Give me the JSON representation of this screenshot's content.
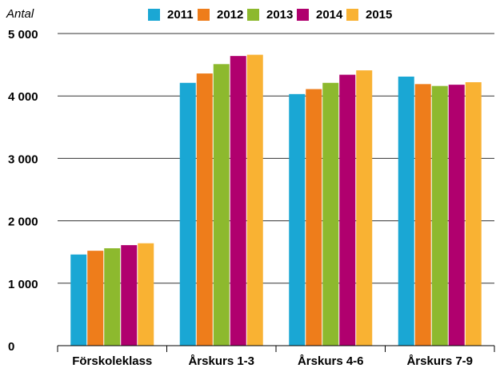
{
  "chart_data": {
    "type": "bar",
    "y_label": "Antal",
    "categories": [
      "Förskoleklass",
      "Årskurs 1-3",
      "Årskurs 4-6",
      "Årskurs 7-9"
    ],
    "series": [
      {
        "name": "2011",
        "color": "#1aa7d4",
        "values": [
          1460,
          4210,
          4030,
          4310
        ]
      },
      {
        "name": "2012",
        "color": "#ee7d1b",
        "values": [
          1520,
          4360,
          4110,
          4190
        ]
      },
      {
        "name": "2013",
        "color": "#8db92e",
        "values": [
          1560,
          4510,
          4210,
          4160
        ]
      },
      {
        "name": "2014",
        "color": "#b0006e",
        "values": [
          1610,
          4640,
          4340,
          4180
        ]
      },
      {
        "name": "2015",
        "color": "#f9b233",
        "values": [
          1640,
          4660,
          4410,
          4220
        ]
      }
    ],
    "ylim": [
      0,
      5000
    ],
    "yticks": [
      0,
      {
        "value": 1000,
        "label": "1 000"
      },
      {
        "value": 2000,
        "label": "2 000"
      },
      {
        "value": 3000,
        "label": "3 000"
      },
      {
        "value": 4000,
        "label": "4 000"
      },
      {
        "value": 5000,
        "label": "5 000"
      }
    ],
    "grid": true
  }
}
